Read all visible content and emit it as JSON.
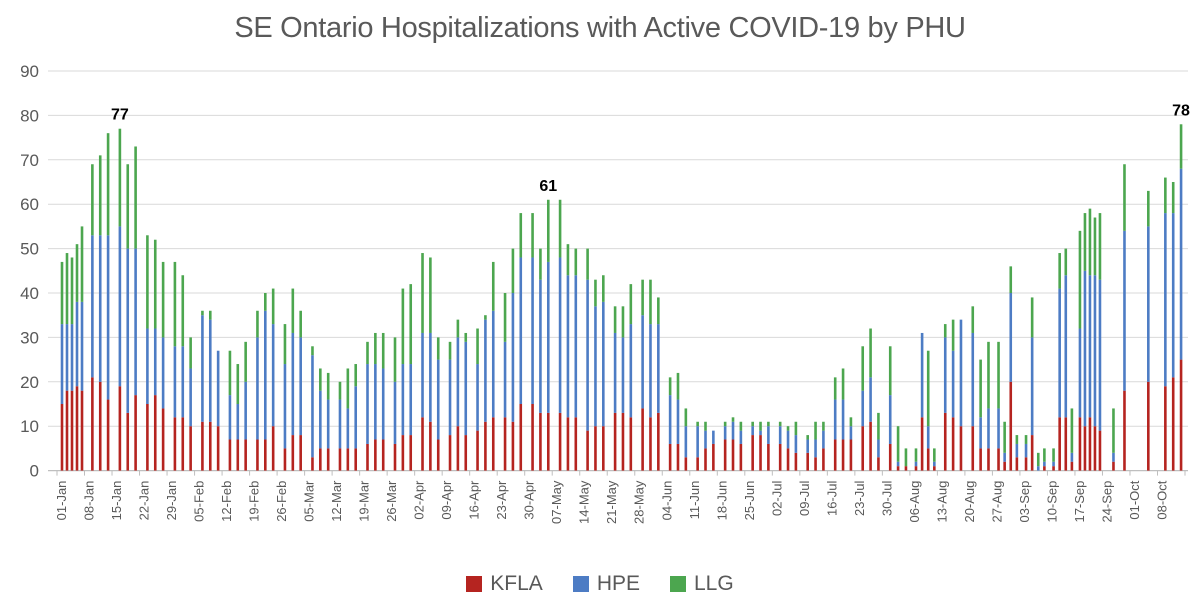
{
  "title": "SE Ontario Hospitalizations with Active COVID-19 by PHU",
  "legend": [
    {
      "label": "KFLA",
      "color": "#b52420"
    },
    {
      "label": "HPE",
      "color": "#4d7cc4"
    },
    {
      "label": "LLG",
      "color": "#4ca64f"
    }
  ],
  "chart_data": {
    "type": "bar",
    "stacked": true,
    "title": "SE Ontario Hospitalizations with Active COVID-19 by PHU",
    "xlabel": "",
    "ylabel": "",
    "ylim": [
      0,
      90
    ],
    "yticks": [
      0,
      10,
      20,
      30,
      40,
      50,
      60,
      70,
      80,
      90
    ],
    "grid": true,
    "legend_position": "bottom",
    "series_names": [
      "KFLA",
      "HPE",
      "LLG"
    ],
    "series_colors": [
      "#b52420",
      "#4d7cc4",
      "#4ca64f"
    ],
    "axis_color": "#bfbfbf",
    "grid_color": "#d9d9d9",
    "label_color": "#595959",
    "groups": [
      {
        "label": "01-Jan",
        "bars": [
          [
            15,
            18,
            14
          ],
          [
            18,
            15,
            16
          ],
          [
            18,
            15,
            15
          ],
          [
            19,
            19,
            13
          ],
          [
            18,
            20,
            17
          ]
        ]
      },
      {
        "label": "08-Jan",
        "bars": [
          [
            21,
            32,
            16
          ],
          [
            20,
            33,
            18
          ],
          [
            16,
            37,
            23
          ]
        ]
      },
      {
        "label": "15-Jan",
        "bars": [
          [
            19,
            36,
            22
          ],
          [
            13,
            37,
            19
          ],
          [
            17,
            33,
            23
          ]
        ]
      },
      {
        "label": "22-Jan",
        "bars": [
          [
            15,
            17,
            21
          ],
          [
            17,
            15,
            20
          ],
          [
            14,
            16,
            17
          ]
        ]
      },
      {
        "label": "29-Jan",
        "bars": [
          [
            12,
            16,
            19
          ],
          [
            12,
            16,
            16
          ],
          [
            10,
            13,
            7
          ]
        ]
      },
      {
        "label": "05-Feb",
        "bars": [
          [
            11,
            24,
            1
          ],
          [
            11,
            23,
            2
          ],
          [
            10,
            17,
            0
          ]
        ]
      },
      {
        "label": "12-Feb",
        "bars": [
          [
            7,
            10,
            10
          ],
          [
            7,
            8,
            9
          ],
          [
            7,
            13,
            9
          ]
        ]
      },
      {
        "label": "19-Feb",
        "bars": [
          [
            7,
            23,
            6
          ],
          [
            7,
            29,
            4
          ],
          [
            10,
            23,
            8
          ]
        ]
      },
      {
        "label": "26-Feb",
        "bars": [
          [
            5,
            19,
            9
          ],
          [
            8,
            23,
            10
          ],
          [
            8,
            22,
            6
          ]
        ]
      },
      {
        "label": "05-Mar",
        "bars": [
          [
            3,
            23,
            2
          ],
          [
            5,
            13,
            5
          ],
          [
            5,
            11,
            6
          ]
        ]
      },
      {
        "label": "12-Mar",
        "bars": [
          [
            5,
            11,
            4
          ],
          [
            5,
            9,
            9
          ],
          [
            5,
            14,
            5
          ]
        ]
      },
      {
        "label": "19-Mar",
        "bars": [
          [
            6,
            18,
            5
          ],
          [
            7,
            17,
            7
          ],
          [
            7,
            16,
            8
          ]
        ]
      },
      {
        "label": "26-Mar",
        "bars": [
          [
            6,
            14,
            10
          ],
          [
            8,
            16,
            17
          ],
          [
            8,
            16,
            18
          ]
        ]
      },
      {
        "label": "02-Apr",
        "bars": [
          [
            12,
            19,
            18
          ],
          [
            11,
            20,
            17
          ],
          [
            7,
            18,
            5
          ]
        ]
      },
      {
        "label": "09-Apr",
        "bars": [
          [
            8,
            17,
            4
          ],
          [
            10,
            20,
            4
          ],
          [
            8,
            21,
            2
          ]
        ]
      },
      {
        "label": "16-Apr",
        "bars": [
          [
            9,
            15,
            8
          ],
          [
            11,
            23,
            1
          ],
          [
            12,
            24,
            11
          ]
        ]
      },
      {
        "label": "23-Apr",
        "bars": [
          [
            12,
            17,
            11
          ],
          [
            11,
            29,
            10
          ],
          [
            15,
            33,
            10
          ]
        ]
      },
      {
        "label": "30-Apr",
        "bars": [
          [
            15,
            33,
            10
          ],
          [
            13,
            30,
            7
          ],
          [
            13,
            34,
            14
          ]
        ]
      },
      {
        "label": "07-May",
        "bars": [
          [
            13,
            35,
            13
          ],
          [
            12,
            32,
            7
          ],
          [
            12,
            32,
            6
          ]
        ]
      },
      {
        "label": "14-May",
        "bars": [
          [
            9,
            34,
            7
          ],
          [
            10,
            27,
            6
          ],
          [
            10,
            28,
            6
          ]
        ]
      },
      {
        "label": "21-May",
        "bars": [
          [
            13,
            18,
            6
          ],
          [
            13,
            17,
            7
          ],
          [
            12,
            21,
            9
          ]
        ]
      },
      {
        "label": "28-May",
        "bars": [
          [
            14,
            21,
            8
          ],
          [
            12,
            21,
            10
          ],
          [
            13,
            20,
            6
          ]
        ]
      },
      {
        "label": "04-Jun",
        "bars": [
          [
            6,
            11,
            4
          ],
          [
            6,
            10,
            6
          ],
          [
            3,
            7,
            4
          ]
        ]
      },
      {
        "label": "11-Jun",
        "bars": [
          [
            3,
            7,
            1
          ],
          [
            5,
            4,
            2
          ],
          [
            6,
            3,
            0
          ]
        ]
      },
      {
        "label": "18-Jun",
        "bars": [
          [
            7,
            3,
            1
          ],
          [
            7,
            4,
            1
          ],
          [
            6,
            3,
            2
          ]
        ]
      },
      {
        "label": "25-Jun",
        "bars": [
          [
            8,
            2,
            1
          ],
          [
            8,
            1,
            2
          ],
          [
            6,
            4,
            1
          ]
        ]
      },
      {
        "label": "02-Jul",
        "bars": [
          [
            6,
            4,
            1
          ],
          [
            5,
            4,
            1
          ],
          [
            4,
            4,
            3
          ]
        ]
      },
      {
        "label": "09-Jul",
        "bars": [
          [
            4,
            3,
            1
          ],
          [
            3,
            4,
            4
          ],
          [
            5,
            4,
            2
          ]
        ]
      },
      {
        "label": "16-Jul",
        "bars": [
          [
            7,
            9,
            5
          ],
          [
            7,
            9,
            7
          ],
          [
            7,
            3,
            2
          ]
        ]
      },
      {
        "label": "23-Jul",
        "bars": [
          [
            10,
            8,
            10
          ],
          [
            11,
            10,
            11
          ],
          [
            3,
            4,
            6
          ]
        ]
      },
      {
        "label": "30-Jul",
        "bars": [
          [
            6,
            11,
            11
          ],
          [
            1,
            1,
            8
          ],
          [
            1,
            0,
            4
          ]
        ]
      },
      {
        "label": "06-Aug",
        "bars": [
          [
            1,
            1,
            3
          ],
          [
            12,
            19,
            0
          ],
          [
            5,
            5,
            17
          ],
          [
            1,
            1,
            3
          ]
        ]
      },
      {
        "label": "13-Aug",
        "bars": [
          [
            13,
            17,
            3
          ],
          [
            12,
            15,
            7
          ],
          [
            10,
            24,
            0
          ]
        ]
      },
      {
        "label": "20-Aug",
        "bars": [
          [
            10,
            21,
            6
          ],
          [
            5,
            7,
            13
          ],
          [
            5,
            9,
            15
          ]
        ]
      },
      {
        "label": "27-Aug",
        "bars": [
          [
            5,
            9,
            15
          ],
          [
            2,
            2,
            7
          ],
          [
            20,
            20,
            6
          ],
          [
            3,
            3,
            2
          ]
        ]
      },
      {
        "label": "03-Sep",
        "bars": [
          [
            3,
            3,
            2
          ],
          [
            8,
            22,
            9
          ],
          [
            0,
            1,
            3
          ],
          [
            1,
            1,
            3
          ]
        ]
      },
      {
        "label": "10-Sep",
        "bars": [
          [
            1,
            1,
            3
          ],
          [
            12,
            29,
            8
          ],
          [
            12,
            32,
            6
          ],
          [
            2,
            2,
            10
          ]
        ]
      },
      {
        "label": "17-Sep",
        "bars": [
          [
            12,
            20,
            22
          ],
          [
            10,
            35,
            13
          ],
          [
            12,
            32,
            15
          ],
          [
            10,
            34,
            13
          ],
          [
            9,
            34,
            15
          ]
        ]
      },
      {
        "label": "24-Sep",
        "bars": [
          [
            2,
            2,
            10
          ],
          [
            18,
            36,
            15
          ]
        ]
      },
      {
        "label": "01-Oct",
        "bars": [
          [
            20,
            35,
            8
          ]
        ]
      },
      {
        "label": "08-Oct",
        "bars": [
          [
            19,
            39,
            8
          ],
          [
            21,
            37,
            7
          ],
          [
            25,
            43,
            10
          ]
        ]
      }
    ],
    "annotations": [
      {
        "group_index": 2,
        "bar_index": 0,
        "text": "77"
      },
      {
        "group_index": 17,
        "bar_index": 2,
        "text": "61"
      },
      {
        "group_index": 40,
        "bar_index": 2,
        "text": "78"
      }
    ]
  }
}
